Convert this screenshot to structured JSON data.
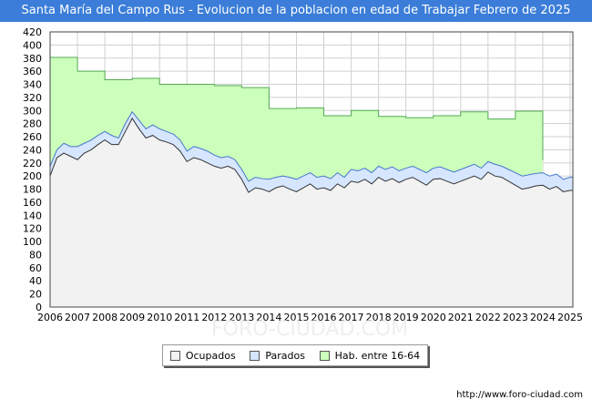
{
  "title": "Santa María del Campo Rus - Evolucion de la poblacion en edad de Trabajar Febrero de 2025",
  "url": "http://www.foro-ciudad.com",
  "chart_data": {
    "type": "area",
    "title": "Santa María del Campo Rus - Evolucion de la poblacion en edad de Trabajar Febrero de 2025",
    "xlabel": "",
    "ylabel": "",
    "xlim": [
      2006,
      2025.1
    ],
    "ylim": [
      0,
      420
    ],
    "y_ticks": [
      0,
      20,
      40,
      60,
      80,
      100,
      120,
      140,
      160,
      180,
      200,
      220,
      240,
      260,
      280,
      300,
      320,
      340,
      360,
      380,
      400,
      420
    ],
    "x_ticks": [
      "2006",
      "2007",
      "2008",
      "2009",
      "2010",
      "2011",
      "2012",
      "2013",
      "2014",
      "2015",
      "2016",
      "2017",
      "2018",
      "2019",
      "2020",
      "2021",
      "2022",
      "2023",
      "2024",
      "2025"
    ],
    "grid": true,
    "legend_position": "bottom",
    "series": [
      {
        "name": "Hab. entre 16-64",
        "color": "#ccffbb",
        "line_color": "#55aa55",
        "step": true,
        "x": [
          2006,
          2007,
          2008,
          2009,
          2010,
          2011,
          2012,
          2013,
          2014,
          2015,
          2016,
          2017,
          2018,
          2019,
          2020,
          2021,
          2022,
          2023,
          2024
        ],
        "values": [
          381,
          360,
          347,
          349,
          340,
          340,
          338,
          335,
          303,
          304,
          292,
          300,
          291,
          289,
          292,
          298,
          287,
          299,
          225
        ]
      },
      {
        "name": "Parados",
        "color": "#d6e6ff",
        "line_color": "#4477cc",
        "x": [
          2006.0,
          2006.25,
          2006.5,
          2006.75,
          2007.0,
          2007.25,
          2007.5,
          2007.75,
          2008.0,
          2008.25,
          2008.5,
          2008.75,
          2009.0,
          2009.25,
          2009.5,
          2009.75,
          2010.0,
          2010.25,
          2010.5,
          2010.75,
          2011.0,
          2011.25,
          2011.5,
          2011.75,
          2012.0,
          2012.25,
          2012.5,
          2012.75,
          2013.0,
          2013.25,
          2013.5,
          2013.75,
          2014.0,
          2014.25,
          2014.5,
          2014.75,
          2015.0,
          2015.25,
          2015.5,
          2015.75,
          2016.0,
          2016.25,
          2016.5,
          2016.75,
          2017.0,
          2017.25,
          2017.5,
          2017.75,
          2018.0,
          2018.25,
          2018.5,
          2018.75,
          2019.0,
          2019.25,
          2019.5,
          2019.75,
          2020.0,
          2020.25,
          2020.5,
          2020.75,
          2021.0,
          2021.25,
          2021.5,
          2021.75,
          2022.0,
          2022.25,
          2022.5,
          2022.75,
          2023.0,
          2023.25,
          2023.5,
          2023.75,
          2024.0,
          2024.25,
          2024.5,
          2024.75,
          2025.0,
          2025.1
        ],
        "values": [
          215,
          240,
          250,
          245,
          245,
          250,
          255,
          262,
          268,
          262,
          258,
          280,
          298,
          285,
          272,
          278,
          272,
          268,
          264,
          255,
          238,
          245,
          242,
          238,
          232,
          228,
          230,
          225,
          210,
          192,
          198,
          196,
          195,
          198,
          200,
          198,
          195,
          200,
          205,
          198,
          200,
          196,
          205,
          198,
          210,
          208,
          212,
          205,
          215,
          210,
          214,
          208,
          212,
          215,
          210,
          205,
          212,
          214,
          210,
          206,
          210,
          214,
          218,
          212,
          222,
          218,
          215,
          210,
          205,
          200,
          202,
          204,
          205,
          200,
          203,
          195,
          198,
          198
        ]
      },
      {
        "name": "Ocupados",
        "color": "#f2f2f2",
        "line_color": "#333333",
        "x": [
          2006.0,
          2006.25,
          2006.5,
          2006.75,
          2007.0,
          2007.25,
          2007.5,
          2007.75,
          2008.0,
          2008.25,
          2008.5,
          2008.75,
          2009.0,
          2009.25,
          2009.5,
          2009.75,
          2010.0,
          2010.25,
          2010.5,
          2010.75,
          2011.0,
          2011.25,
          2011.5,
          2011.75,
          2012.0,
          2012.25,
          2012.5,
          2012.75,
          2013.0,
          2013.25,
          2013.5,
          2013.75,
          2014.0,
          2014.25,
          2014.5,
          2014.75,
          2015.0,
          2015.25,
          2015.5,
          2015.75,
          2016.0,
          2016.25,
          2016.5,
          2016.75,
          2017.0,
          2017.25,
          2017.5,
          2017.75,
          2018.0,
          2018.25,
          2018.5,
          2018.75,
          2019.0,
          2019.25,
          2019.5,
          2019.75,
          2020.0,
          2020.25,
          2020.5,
          2020.75,
          2021.0,
          2021.25,
          2021.5,
          2021.75,
          2022.0,
          2022.25,
          2022.5,
          2022.75,
          2023.0,
          2023.25,
          2023.5,
          2023.75,
          2024.0,
          2024.25,
          2024.5,
          2024.75,
          2025.0,
          2025.1
        ],
        "values": [
          200,
          228,
          235,
          230,
          225,
          235,
          240,
          248,
          255,
          248,
          248,
          268,
          288,
          272,
          258,
          262,
          255,
          252,
          248,
          238,
          222,
          228,
          225,
          220,
          215,
          212,
          215,
          210,
          195,
          175,
          182,
          180,
          176,
          182,
          185,
          180,
          176,
          182,
          188,
          180,
          182,
          178,
          188,
          182,
          192,
          190,
          195,
          188,
          198,
          192,
          196,
          190,
          195,
          198,
          192,
          186,
          195,
          196,
          192,
          188,
          192,
          196,
          200,
          195,
          206,
          200,
          198,
          192,
          186,
          180,
          182,
          185,
          186,
          180,
          184,
          176,
          178,
          178
        ]
      }
    ]
  },
  "watermark": "FORO-CIUDAD.COM"
}
